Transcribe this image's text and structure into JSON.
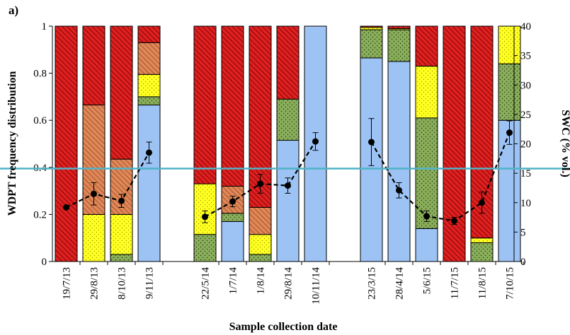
{
  "chart_data": {
    "type": "bar",
    "panel_label": "a)",
    "xlabel": "Sample collection date",
    "ylabel_left": "WDPT frequency distribution",
    "ylabel_right": "SWC (% vol.)",
    "ylim_left": [
      0,
      1
    ],
    "ylim_right": [
      0,
      40
    ],
    "left_ticks": [
      "0",
      "0.2",
      "0.4",
      "0.6",
      "0.8",
      "1"
    ],
    "right_ticks": [
      "0",
      "5",
      "10",
      "15",
      "20",
      "25",
      "30",
      "35",
      "40"
    ],
    "stacked": true,
    "grid": false,
    "groups": [
      [
        "19/7/13",
        "29/8/13",
        "8/10/13",
        "9/11/13"
      ],
      [
        "22/5/14",
        "1/7/14",
        "1/8/14",
        "29/8/14",
        "10/11/14"
      ],
      [
        "23/3/15",
        "28/4/14",
        "5/6/15",
        "11/7/15",
        "11/8/15",
        "7/10/15"
      ]
    ],
    "categories": [
      "19/7/13",
      "29/8/13",
      "8/10/13",
      "9/11/13",
      "22/5/14",
      "1/7/14",
      "1/8/14",
      "29/8/14",
      "10/11/14",
      "23/3/15",
      "28/4/14",
      "5/6/15",
      "11/7/15",
      "11/8/15",
      "7/10/15"
    ],
    "series": [
      {
        "key": "blue",
        "color": "#9DC3F5",
        "pattern": "none",
        "values": [
          0,
          0,
          0,
          0.665,
          0,
          0.17,
          0,
          0.515,
          1.0,
          0.865,
          0.85,
          0.14,
          0,
          0,
          0.6
        ]
      },
      {
        "key": "green",
        "color": "#8AAE5A",
        "pattern": "dots",
        "values": [
          0,
          0,
          0.03,
          0.035,
          0.115,
          0.035,
          0.03,
          0.175,
          0,
          0.12,
          0.135,
          0.47,
          0,
          0.08,
          0.24
        ]
      },
      {
        "key": "yellow",
        "color": "#FFFF22",
        "pattern": "dots",
        "values": [
          0,
          0.2,
          0.17,
          0.095,
          0.215,
          0,
          0.085,
          0,
          0,
          0.01,
          0.005,
          0.22,
          0,
          0.02,
          0.16
        ]
      },
      {
        "key": "orange",
        "color": "#E0885A",
        "pattern": "hatch",
        "values": [
          0,
          0.465,
          0.235,
          0.135,
          0,
          0.115,
          0.115,
          0,
          0,
          0,
          0,
          0,
          0,
          0,
          0
        ]
      },
      {
        "key": "red",
        "color": "#E02020",
        "pattern": "hatch",
        "values": [
          1.0,
          0.335,
          0.565,
          0.07,
          0.67,
          0.68,
          0.77,
          0.31,
          0,
          0.005,
          0.01,
          0.17,
          1.0,
          0.9,
          0
        ]
      }
    ],
    "swc_line": {
      "axis": "right",
      "style": "dashed",
      "marker": "circle",
      "values": [
        9.2,
        11.5,
        10.3,
        18.5,
        7.6,
        10.2,
        13.2,
        12.9,
        20.4,
        20.3,
        12.1,
        7.7,
        6.9,
        10.0,
        21.9
      ],
      "errors": [
        0,
        1.9,
        1.1,
        1.8,
        1.0,
        0.9,
        1.6,
        1.3,
        1.5,
        4.0,
        1.3,
        0.9,
        0.6,
        1.8,
        2.0
      ]
    },
    "reference_line": {
      "value": 0.395,
      "axis": "left",
      "color": "#4FB3C9"
    }
  }
}
